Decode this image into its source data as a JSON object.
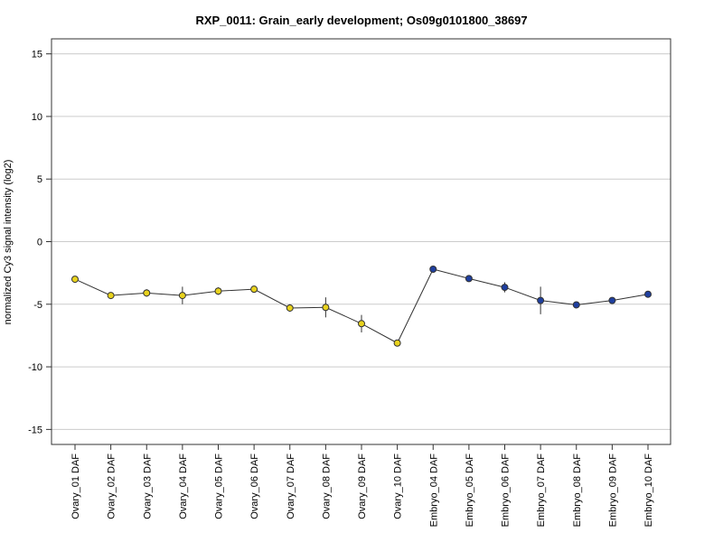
{
  "chart_data": {
    "type": "line",
    "title": "RXP_0011: Grain_early development; Os09g0101800_38697",
    "xlabel": "",
    "ylabel": "normalized Cy3 signal intensity (log2)",
    "ylim": [
      -16.2,
      16.2
    ],
    "yticks": [
      15,
      10,
      5,
      0,
      -5,
      -10,
      -15
    ],
    "yticklabels": [
      "15",
      "10",
      "5",
      "0",
      "-5",
      "-10",
      "-15"
    ],
    "grid": true,
    "categories": [
      "Ovary_01 DAF",
      "Ovary_02 DAF",
      "Ovary_03 DAF",
      "Ovary_04 DAF",
      "Ovary_05 DAF",
      "Ovary_06 DAF",
      "Ovary_07 DAF",
      "Ovary_08 DAF",
      "Ovary_09 DAF",
      "Ovary_10 DAF",
      "Embryo_04 DAF",
      "Embryo_05 DAF",
      "Embryo_06 DAF",
      "Embryo_07 DAF",
      "Embryo_08 DAF",
      "Embryo_09 DAF",
      "Embryo_10 DAF"
    ],
    "series": [
      {
        "values": [
          -3.0,
          -4.3,
          -4.1,
          -4.3,
          -3.95,
          -3.8,
          -5.3,
          -5.25,
          -6.55,
          -8.1,
          -2.2,
          -2.95,
          -3.65,
          -4.7,
          -5.05,
          -4.7,
          -4.2
        ],
        "errors": [
          0.25,
          0.2,
          0.3,
          0.7,
          0.3,
          0.2,
          0.3,
          0.8,
          0.7,
          0.2,
          0.2,
          0.2,
          0.4,
          1.1,
          0.15,
          0.15,
          0.15
        ],
        "point_colors": [
          "#e8d21d",
          "#e8d21d",
          "#e8d21d",
          "#e8d21d",
          "#e8d21d",
          "#e8d21d",
          "#e8d21d",
          "#e8d21d",
          "#e8d21d",
          "#e8d21d",
          "#1f3f9f",
          "#1f3f9f",
          "#1f3f9f",
          "#1f3f9f",
          "#1f3f9f",
          "#1f3f9f",
          "#1f3f9f"
        ]
      }
    ],
    "line_color": "#333333",
    "grid_color": "#cccccc"
  }
}
